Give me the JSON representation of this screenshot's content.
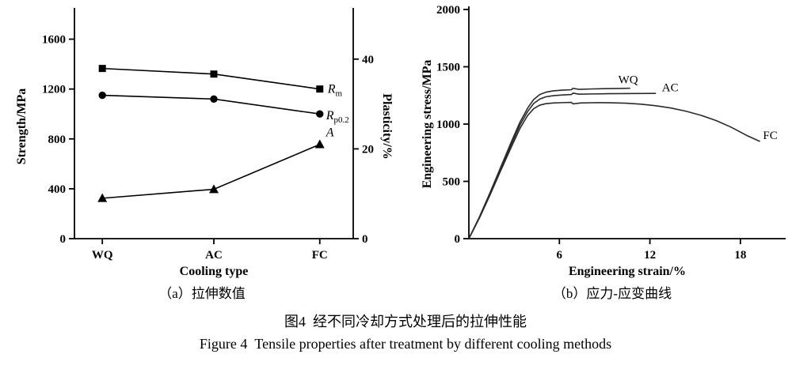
{
  "figure": {
    "caption_a": "（a）拉伸数值",
    "caption_b": "（b）应力-应变曲线",
    "caption_zh": "图4  经不同冷却方式处理后的拉伸性能",
    "caption_en": "Figure 4  Tensile properties after treatment by different cooling methods"
  },
  "chart_data": [
    {
      "id": "tensile-values",
      "type": "line",
      "categories": [
        "WQ",
        "AC",
        "FC"
      ],
      "cat_pos": [
        0.1,
        0.5,
        0.88
      ],
      "xlabel": "Cooling type",
      "ylabel_left": "Strength/MPa",
      "ylabel_right": "Plasticity/%",
      "ylim_left": [
        0,
        1800
      ],
      "yticks_left": [
        0,
        400,
        800,
        1200,
        1600
      ],
      "ylim_right": [
        0,
        50
      ],
      "yticks_right": [
        0,
        20,
        40
      ],
      "grid": false,
      "series": [
        {
          "name": "Rm",
          "label_main": "R",
          "label_sub": "m",
          "axis": "left",
          "marker": "square",
          "values": [
            1365,
            1320,
            1200
          ],
          "label_dx": 10,
          "label_dy": 5
        },
        {
          "name": "Rp0.2",
          "label_main": "R",
          "label_sub": "p0.2",
          "axis": "left",
          "marker": "circle",
          "values": [
            1150,
            1120,
            1000
          ],
          "label_dx": 8,
          "label_dy": 7
        },
        {
          "name": "A",
          "label_main": "A",
          "label_sub": "",
          "axis": "right",
          "marker": "triangle",
          "values": [
            9,
            11,
            21
          ],
          "label_dx": 8,
          "label_dy": -10
        }
      ]
    },
    {
      "id": "stress-strain",
      "type": "line",
      "xlabel": "Engineering strain/%",
      "ylabel": "Engineering stress/MPa",
      "xlim": [
        0,
        21
      ],
      "xticks": [
        6,
        12,
        18
      ],
      "ylim": [
        0,
        2000
      ],
      "yticks": [
        0,
        500,
        1000,
        1500,
        2000
      ],
      "grid": false,
      "series": [
        {
          "name": "FC",
          "label_x": 19.5,
          "label_y": 870,
          "points": [
            [
              0,
              0
            ],
            [
              0.7,
              180
            ],
            [
              1.4,
              380
            ],
            [
              2.1,
              590
            ],
            [
              2.8,
              795
            ],
            [
              3.4,
              965
            ],
            [
              3.9,
              1075
            ],
            [
              4.3,
              1135
            ],
            [
              4.7,
              1165
            ],
            [
              5.1,
              1178
            ],
            [
              5.6,
              1184
            ],
            [
              6.2,
              1187
            ],
            [
              6.8,
              1189
            ],
            [
              6.9,
              1176
            ],
            [
              7.4,
              1184
            ],
            [
              8.4,
              1187
            ],
            [
              9.4,
              1186
            ],
            [
              10.4,
              1182
            ],
            [
              11.4,
              1174
            ],
            [
              12.4,
              1160
            ],
            [
              13.4,
              1140
            ],
            [
              14.4,
              1112
            ],
            [
              15.4,
              1076
            ],
            [
              16.4,
              1030
            ],
            [
              17.4,
              972
            ],
            [
              18.4,
              902
            ],
            [
              19.3,
              848
            ]
          ]
        },
        {
          "name": "AC",
          "label_x": 12.8,
          "label_y": 1285,
          "points": [
            [
              0,
              0
            ],
            [
              0.7,
              185
            ],
            [
              1.4,
              390
            ],
            [
              2.1,
              605
            ],
            [
              2.8,
              820
            ],
            [
              3.4,
              995
            ],
            [
              3.9,
              1110
            ],
            [
              4.3,
              1180
            ],
            [
              4.7,
              1218
            ],
            [
              5.1,
              1238
            ],
            [
              5.6,
              1248
            ],
            [
              6.2,
              1254
            ],
            [
              6.8,
              1258
            ],
            [
              6.9,
              1270
            ],
            [
              7.3,
              1261
            ],
            [
              8.2,
              1263
            ],
            [
              9.2,
              1265
            ],
            [
              10.2,
              1266
            ],
            [
              11.2,
              1267
            ],
            [
              12.4,
              1268
            ]
          ]
        },
        {
          "name": "WQ",
          "label_x": 9.9,
          "label_y": 1355,
          "points": [
            [
              0,
              0
            ],
            [
              0.7,
              190
            ],
            [
              1.4,
              400
            ],
            [
              2.1,
              620
            ],
            [
              2.8,
              840
            ],
            [
              3.4,
              1020
            ],
            [
              3.9,
              1140
            ],
            [
              4.3,
              1215
            ],
            [
              4.7,
              1258
            ],
            [
              5.1,
              1278
            ],
            [
              5.6,
              1290
            ],
            [
              6.2,
              1296
            ],
            [
              6.8,
              1300
            ],
            [
              6.9,
              1312
            ],
            [
              7.3,
              1303
            ],
            [
              8.0,
              1306
            ],
            [
              9.0,
              1309
            ],
            [
              10.0,
              1311
            ],
            [
              10.7,
              1313
            ]
          ]
        }
      ]
    }
  ]
}
